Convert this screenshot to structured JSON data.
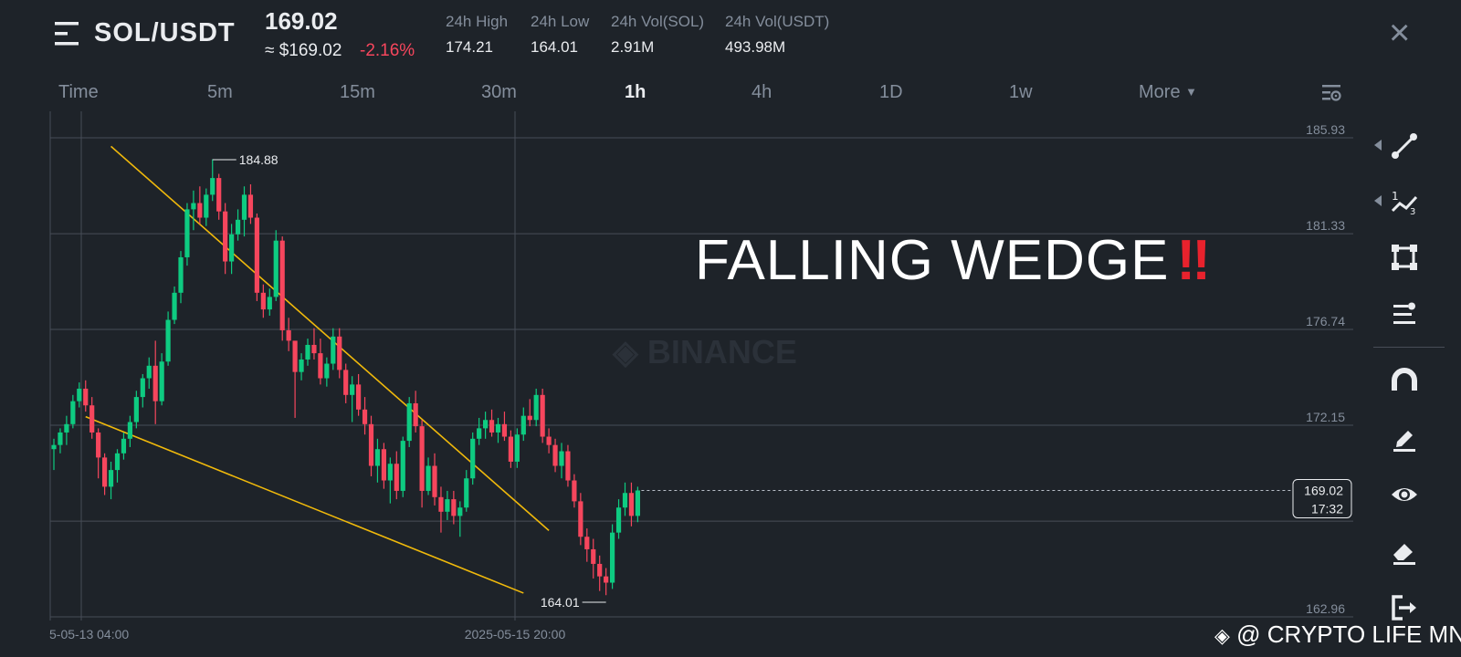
{
  "header": {
    "pair": "SOL/USDT",
    "price": "169.02",
    "approx_usd": "≈ $169.02",
    "change": "-2.16%",
    "stats": [
      {
        "label": "24h High",
        "value": "174.21"
      },
      {
        "label": "24h Low",
        "value": "164.01"
      },
      {
        "label": "24h Vol(SOL)",
        "value": "2.91M"
      },
      {
        "label": "24h Vol(USDT)",
        "value": "493.98M"
      }
    ]
  },
  "timeframes": [
    {
      "label": "Time",
      "active": false
    },
    {
      "label": "5m",
      "active": false
    },
    {
      "label": "15m",
      "active": false
    },
    {
      "label": "30m",
      "active": false
    },
    {
      "label": "1h",
      "active": true
    },
    {
      "label": "4h",
      "active": false
    },
    {
      "label": "1D",
      "active": false
    },
    {
      "label": "1w",
      "active": false
    }
  ],
  "more_label": "More",
  "annotation": {
    "text": "FALLING WEDGE",
    "emoji": "‼"
  },
  "watermark": "@ CRYPTO LIFE MNE",
  "chart_watermark": "BINANCE",
  "colors": {
    "up": "#0ecb81",
    "down": "#f6465d",
    "trendline": "#f0b90b",
    "background": "#1e2329"
  },
  "toolbar_icons": [
    "trendline-icon",
    "fibonacci-icon",
    "rectangle-icon",
    "indicator-icon",
    "magnet-icon",
    "pencil-icon",
    "eye-icon",
    "eraser-icon",
    "exit-icon"
  ],
  "chart_data": {
    "type": "candlestick",
    "symbol": "SOL/USDT",
    "interval": "1h",
    "y_ticks": [
      "185.93",
      "181.33",
      "176.74",
      "172.15",
      "162.96"
    ],
    "ylim": [
      162.96,
      185.93
    ],
    "x_tick_labels": [
      "5-05-13 04:00",
      "2025-05-15 20:00"
    ],
    "last_price": "169.02",
    "countdown": "17:32",
    "high_marker": "184.88",
    "low_marker": "164.01",
    "candles_ohlc": [
      [
        171.0,
        171.5,
        170.0,
        171.2
      ],
      [
        171.2,
        172.0,
        170.8,
        171.8
      ],
      [
        171.8,
        172.6,
        171.2,
        172.2
      ],
      [
        172.2,
        173.6,
        172.0,
        173.3
      ],
      [
        173.3,
        174.2,
        173.0,
        173.9
      ],
      [
        173.9,
        174.3,
        172.8,
        173.1
      ],
      [
        173.1,
        173.5,
        171.5,
        171.8
      ],
      [
        171.8,
        172.0,
        169.6,
        170.6
      ],
      [
        170.6,
        170.8,
        168.8,
        169.2
      ],
      [
        169.2,
        170.4,
        168.6,
        170.0
      ],
      [
        170.0,
        171.0,
        169.4,
        170.8
      ],
      [
        170.8,
        171.8,
        170.5,
        171.5
      ],
      [
        171.5,
        172.6,
        171.1,
        172.3
      ],
      [
        172.3,
        173.8,
        172.0,
        173.5
      ],
      [
        173.5,
        174.6,
        173.0,
        174.4
      ],
      [
        174.4,
        175.4,
        173.9,
        175.0
      ],
      [
        175.0,
        176.2,
        172.2,
        173.3
      ],
      [
        173.3,
        175.6,
        173.1,
        175.2
      ],
      [
        175.2,
        177.6,
        175.0,
        177.2
      ],
      [
        177.2,
        178.8,
        177.0,
        178.5
      ],
      [
        178.5,
        180.5,
        178.0,
        180.2
      ],
      [
        180.2,
        182.8,
        179.8,
        182.5
      ],
      [
        182.5,
        183.4,
        181.5,
        182.8
      ],
      [
        182.8,
        183.6,
        181.8,
        182.1
      ],
      [
        182.1,
        183.5,
        181.7,
        183.2
      ],
      [
        183.2,
        184.9,
        182.9,
        184.0
      ],
      [
        184.0,
        184.2,
        182.0,
        182.4
      ],
      [
        182.4,
        182.8,
        179.4,
        180.0
      ],
      [
        180.0,
        181.8,
        179.4,
        181.3
      ],
      [
        181.3,
        182.5,
        181.0,
        182.0
      ],
      [
        182.0,
        183.6,
        181.2,
        183.2
      ],
      [
        183.2,
        183.7,
        181.8,
        182.1
      ],
      [
        182.1,
        182.3,
        178.1,
        178.5
      ],
      [
        178.5,
        178.9,
        177.3,
        177.7
      ],
      [
        177.7,
        178.7,
        177.4,
        178.3
      ],
      [
        178.3,
        181.5,
        178.1,
        181.0
      ],
      [
        181.0,
        181.2,
        176.2,
        176.7
      ],
      [
        176.7,
        177.3,
        175.7,
        176.2
      ],
      [
        176.2,
        175.8,
        172.5,
        174.7
      ],
      [
        174.7,
        175.6,
        174.3,
        175.3
      ],
      [
        175.3,
        176.3,
        175.0,
        176.0
      ],
      [
        176.0,
        176.8,
        175.3,
        175.6
      ],
      [
        175.6,
        176.3,
        174.1,
        174.4
      ],
      [
        174.4,
        175.4,
        174.0,
        175.1
      ],
      [
        175.1,
        176.8,
        174.8,
        176.4
      ],
      [
        176.4,
        176.8,
        174.4,
        174.8
      ],
      [
        174.8,
        175.1,
        173.2,
        173.6
      ],
      [
        173.6,
        174.5,
        172.3,
        174.1
      ],
      [
        174.1,
        174.6,
        172.6,
        172.9
      ],
      [
        172.9,
        173.5,
        171.7,
        172.2
      ],
      [
        172.2,
        172.6,
        169.7,
        170.2
      ],
      [
        170.2,
        171.5,
        169.4,
        171.0
      ],
      [
        171.0,
        171.3,
        169.1,
        169.5
      ],
      [
        169.5,
        170.6,
        168.4,
        170.3
      ],
      [
        170.3,
        170.9,
        168.6,
        169.0
      ],
      [
        169.0,
        171.6,
        168.7,
        171.4
      ],
      [
        171.4,
        173.5,
        171.1,
        173.2
      ],
      [
        173.2,
        173.8,
        171.8,
        172.1
      ],
      [
        172.1,
        172.4,
        168.2,
        169.0
      ],
      [
        169.0,
        170.6,
        168.8,
        170.2
      ],
      [
        170.2,
        170.8,
        168.3,
        168.7
      ],
      [
        168.7,
        169.2,
        167.0,
        168.0
      ],
      [
        168.0,
        169.0,
        167.6,
        168.6
      ],
      [
        168.6,
        169.0,
        167.4,
        167.8
      ],
      [
        167.8,
        168.5,
        166.8,
        168.2
      ],
      [
        168.2,
        170.0,
        168.0,
        169.6
      ],
      [
        169.6,
        171.8,
        169.3,
        171.5
      ],
      [
        171.5,
        172.5,
        171.2,
        172.0
      ],
      [
        172.0,
        172.8,
        171.5,
        172.4
      ],
      [
        172.4,
        172.9,
        171.6,
        171.8
      ],
      [
        171.8,
        172.5,
        171.3,
        172.2
      ],
      [
        172.2,
        172.8,
        171.4,
        171.6
      ],
      [
        171.6,
        171.9,
        170.1,
        170.4
      ],
      [
        170.4,
        172.0,
        170.1,
        171.7
      ],
      [
        171.7,
        173.0,
        171.4,
        172.6
      ],
      [
        172.6,
        173.4,
        172.1,
        172.4
      ],
      [
        172.4,
        173.9,
        172.1,
        173.6
      ],
      [
        173.6,
        173.9,
        171.3,
        171.6
      ],
      [
        171.6,
        172.0,
        170.8,
        171.2
      ],
      [
        171.2,
        171.5,
        169.9,
        170.2
      ],
      [
        170.2,
        171.3,
        169.6,
        170.9
      ],
      [
        170.9,
        171.2,
        169.2,
        169.5
      ],
      [
        169.5,
        169.8,
        168.2,
        168.5
      ],
      [
        168.5,
        168.9,
        166.4,
        166.8
      ],
      [
        166.8,
        167.2,
        165.6,
        166.2
      ],
      [
        166.2,
        166.7,
        164.8,
        165.5
      ],
      [
        165.5,
        165.9,
        164.2,
        164.9
      ],
      [
        164.9,
        165.3,
        164.0,
        164.6
      ],
      [
        164.6,
        167.4,
        164.3,
        167.0
      ],
      [
        167.0,
        168.6,
        166.7,
        168.2
      ],
      [
        168.2,
        169.4,
        167.8,
        168.9
      ],
      [
        168.9,
        169.4,
        167.3,
        167.8
      ],
      [
        167.8,
        169.2,
        167.5,
        169.02
      ]
    ],
    "trendlines": [
      {
        "name": "upper",
        "points": [
          [
            9,
            185.52
          ],
          [
            53,
            173.0
          ],
          [
            78,
            167.1
          ]
        ]
      },
      {
        "name": "lower",
        "points": [
          [
            5,
            172.56
          ],
          [
            48,
            167.3
          ],
          [
            74,
            164.1
          ]
        ]
      }
    ]
  }
}
